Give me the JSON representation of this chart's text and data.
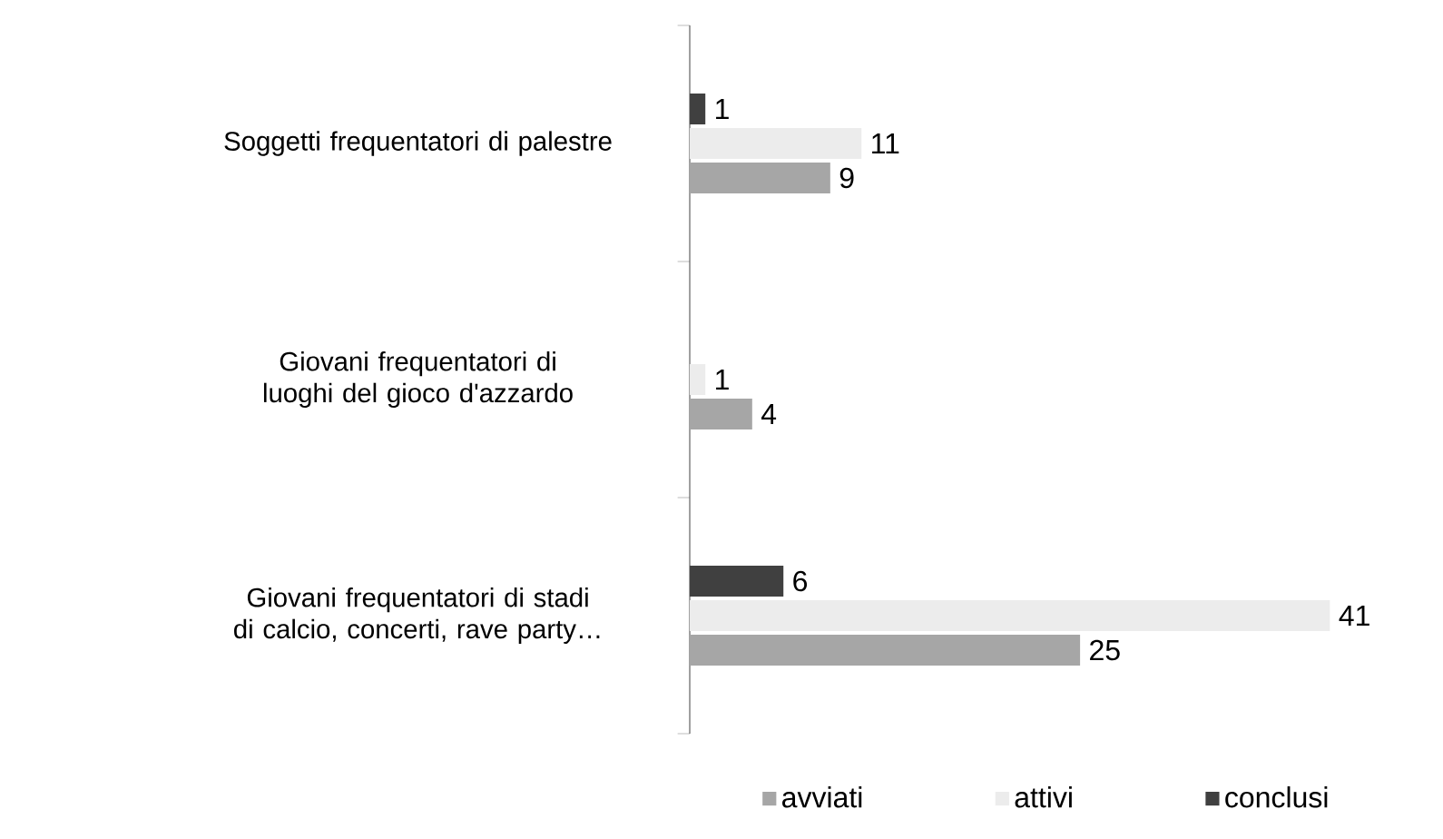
{
  "chart_data": {
    "type": "bar",
    "orientation": "horizontal",
    "categories": [
      "Soggetti frequentatori di palestre",
      "Giovani frequentatori di luoghi del gioco d'azzardo",
      "Giovani frequentatori di stadi di calcio, concerti, rave party…"
    ],
    "series": [
      {
        "name": "avviati",
        "color": "#a6a6a6",
        "values": [
          9,
          4,
          25
        ]
      },
      {
        "name": "attivi",
        "color": "#ececec",
        "values": [
          11,
          1,
          41
        ]
      },
      {
        "name": "conclusi",
        "color": "#404040",
        "values": [
          1,
          null,
          6
        ]
      }
    ],
    "data_labels": true,
    "legend": "bottom"
  }
}
